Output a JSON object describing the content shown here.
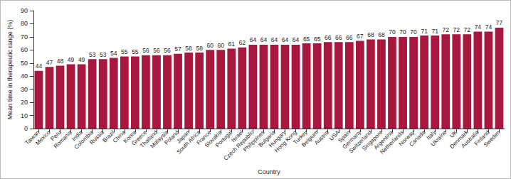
{
  "chart_data": {
    "type": "bar",
    "x_label": "Country",
    "y_label": "Mean time in therapeutic range (%)",
    "categories": [
      "Taiwan",
      "Mexico",
      "Peru",
      "Romania",
      "India",
      "Colombia",
      "Russia",
      "Brazil",
      "China",
      "Korea",
      "Greece",
      "Thailand",
      "Malaysia",
      "Poland",
      "Japan",
      "South Africa",
      "France",
      "Slovakia",
      "Portugal",
      "Israel",
      "Czech Republic",
      "Philippines",
      "Bulgaria",
      "Hungary",
      "Hong Kong",
      "Turkey",
      "Belgium",
      "Austria",
      "USA",
      "Spain",
      "Germany",
      "Switzerland",
      "Singapore",
      "Argentina",
      "Netherlands",
      "Norway",
      "Canada",
      "Italy",
      "Ukraine",
      "UK",
      "Denmark",
      "Australia",
      "Finland",
      "Sweden"
    ],
    "values": [
      44,
      47,
      48,
      49,
      49,
      53,
      53,
      54,
      55,
      55,
      56,
      56,
      56,
      57,
      58,
      58,
      60,
      60,
      61,
      62,
      64,
      64,
      64,
      64,
      64,
      65,
      65,
      66,
      66,
      66,
      67,
      68,
      68,
      70,
      70,
      70,
      71,
      71,
      72,
      72,
      72,
      74,
      74,
      77
    ],
    "color": "#a8173d",
    "ylim": [
      0,
      90
    ],
    "yticks": [
      0,
      10,
      20,
      30,
      40,
      50,
      60,
      70,
      80,
      90
    ],
    "grid": false,
    "data_labels": true
  }
}
